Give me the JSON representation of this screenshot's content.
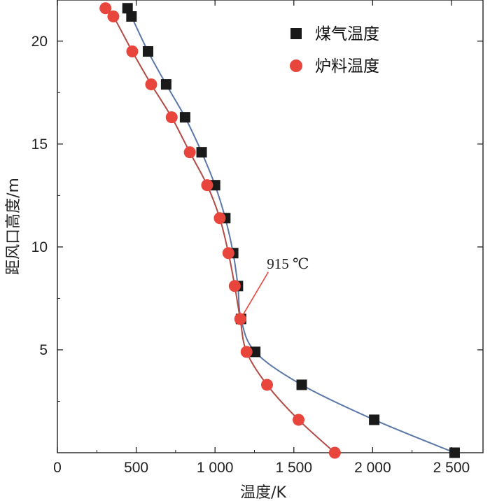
{
  "chart_data": {
    "type": "scatter",
    "title": "",
    "xlabel": "温度/K",
    "ylabel": "距风口高度/m",
    "xlim": [
      0,
      2700
    ],
    "ylim": [
      0,
      22
    ],
    "xticks": [
      0,
      500,
      1000,
      1500,
      2000,
      2500
    ],
    "xtick_labels": [
      "0",
      "500",
      "1 000",
      "1 500",
      "2 000",
      "2 500"
    ],
    "yticks": [
      5,
      10,
      15,
      20
    ],
    "ytick_labels": [
      "5",
      "10",
      "15",
      "20"
    ],
    "grid": false,
    "legend_position": "top-right",
    "series": [
      {
        "name": "煤气温度",
        "marker": "square",
        "color": "#1a1a1a",
        "line_color": "#5b78a8",
        "x": [
          2520,
          2010,
          1550,
          1255,
          1165,
          1145,
          1115,
          1065,
          1000,
          915,
          810,
          690,
          575,
          470,
          445
        ],
        "y": [
          0.0,
          1.6,
          3.3,
          4.9,
          6.5,
          8.1,
          9.7,
          11.4,
          13.0,
          14.6,
          16.3,
          17.9,
          19.5,
          21.2,
          21.6
        ]
      },
      {
        "name": "炉料温度",
        "marker": "circle",
        "color": "#e8463c",
        "line_color": "#b44a44",
        "x": [
          1760,
          1530,
          1330,
          1200,
          1160,
          1125,
          1085,
          1030,
          950,
          840,
          725,
          595,
          475,
          355,
          305
        ],
        "y": [
          0.0,
          1.6,
          3.3,
          4.9,
          6.5,
          8.1,
          9.7,
          11.4,
          13.0,
          14.6,
          16.3,
          17.9,
          19.5,
          21.2,
          21.6
        ]
      }
    ],
    "annotations": [
      {
        "text": "915 ℃",
        "x": 1160,
        "y": 6.5
      }
    ]
  }
}
